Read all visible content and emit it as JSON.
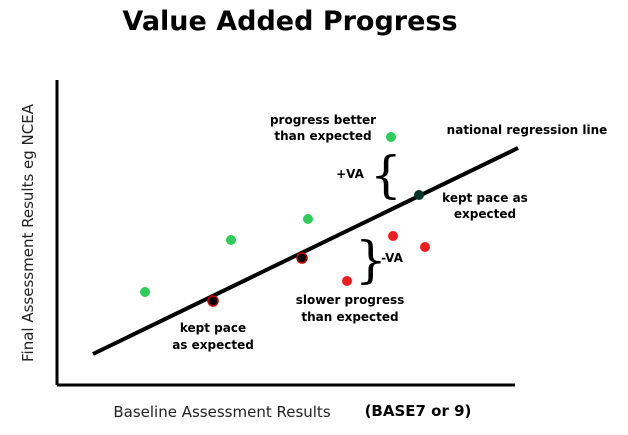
{
  "title": "Value Added Progress",
  "y_axis_label": "Final Assessment Results eg NCEA",
  "x_axis_label": "Baseline Assessment Results",
  "x_axis_note": "(BASE7 or 9)",
  "regression_label": "national regression line",
  "va_plus": "+VA",
  "va_minus": "-VA",
  "annotations": {
    "better_1": "progress better",
    "better_2": "than expected",
    "kept_right_1": "kept pace as",
    "kept_right_2": "expected",
    "slower_1": "slower progress",
    "slower_2": "than expected",
    "kept_left_1": "kept pace",
    "kept_left_2": "as expected"
  },
  "colors": {
    "above": "#2ecc59",
    "below": "#ee1c1c",
    "on_line": "#000000"
  },
  "points_on_line": [
    "kept pace",
    "kept pace",
    "kept pace as expected"
  ],
  "points_above": 4,
  "points_below": 3
}
